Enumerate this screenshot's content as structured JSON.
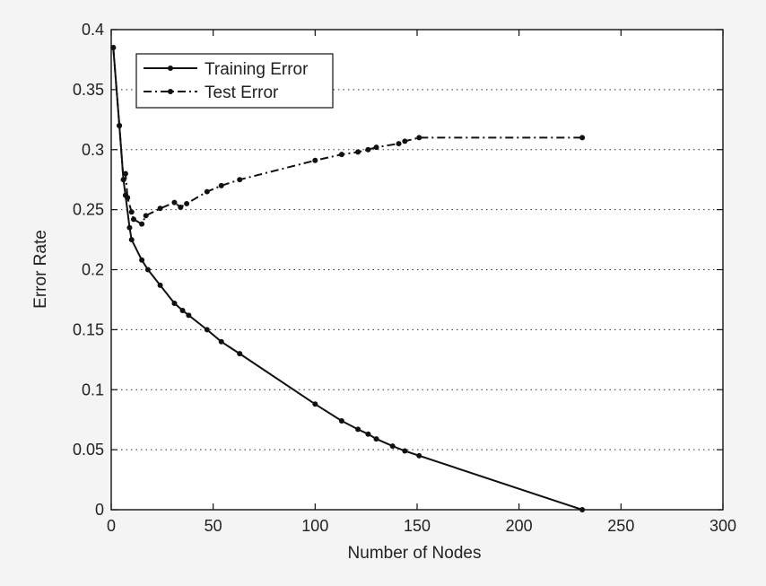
{
  "chart_data": {
    "type": "line",
    "xlabel": "Number of Nodes",
    "ylabel": "Error Rate",
    "xlim": [
      0,
      300
    ],
    "ylim": [
      0,
      0.4
    ],
    "xticks": [
      0,
      50,
      100,
      150,
      200,
      250,
      300
    ],
    "yticks": [
      0,
      0.05,
      0.1,
      0.15,
      0.2,
      0.25,
      0.3,
      0.35,
      0.4
    ],
    "grid": "horizontal-dotted",
    "legend_position": "top-left",
    "series": [
      {
        "name": "Training Error",
        "style": "solid",
        "color": "#111111",
        "x": [
          1,
          4,
          6,
          7,
          9,
          10,
          15,
          18,
          24,
          31,
          35,
          38,
          47,
          54,
          63,
          100,
          113,
          121,
          126,
          130,
          138,
          144,
          151,
          231
        ],
        "y": [
          0.385,
          0.32,
          0.275,
          0.262,
          0.235,
          0.225,
          0.208,
          0.2,
          0.187,
          0.172,
          0.166,
          0.162,
          0.15,
          0.14,
          0.13,
          0.088,
          0.074,
          0.067,
          0.063,
          0.059,
          0.053,
          0.049,
          0.045,
          0.0
        ]
      },
      {
        "name": "Test Error",
        "style": "dash-dot",
        "color": "#111111",
        "x": [
          1,
          4,
          6,
          7,
          8,
          10,
          11,
          15,
          17,
          24,
          31,
          34,
          37,
          47,
          54,
          63,
          100,
          113,
          121,
          126,
          130,
          141,
          144,
          151,
          231
        ],
        "y": [
          0.385,
          0.32,
          0.275,
          0.28,
          0.26,
          0.248,
          0.242,
          0.238,
          0.245,
          0.251,
          0.256,
          0.252,
          0.255,
          0.265,
          0.27,
          0.275,
          0.291,
          0.296,
          0.298,
          0.3,
          0.302,
          0.305,
          0.307,
          0.31,
          0.31
        ]
      }
    ]
  }
}
